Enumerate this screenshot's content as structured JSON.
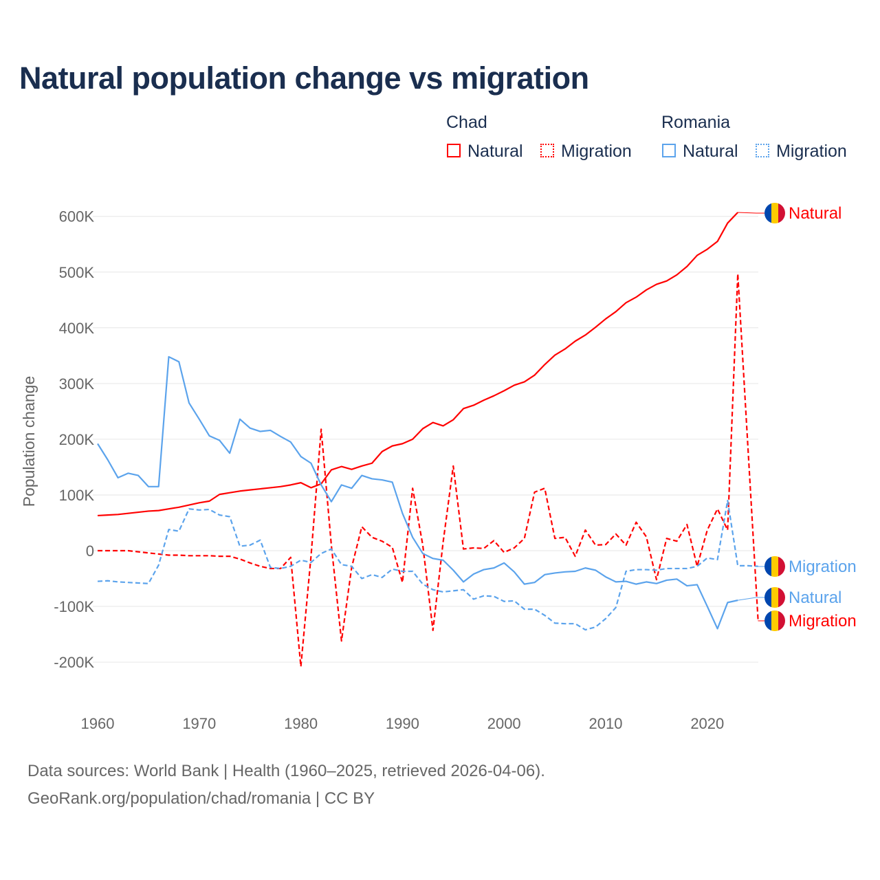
{
  "chart_data": {
    "type": "line",
    "title": "Natural population change vs migration",
    "ylabel": "Population change",
    "xlabel": "",
    "ylim": [
      -200,
      600
    ],
    "xlim": [
      1960,
      2025
    ],
    "grid": true,
    "legend_placement": "top-right",
    "x_ticks": [
      "1960",
      "1970",
      "1980",
      "1990",
      "2000",
      "2010",
      "2020"
    ],
    "y_ticks": [
      {
        "v": 600,
        "t": "600K"
      },
      {
        "v": 500,
        "t": "500K"
      },
      {
        "v": 400,
        "t": "400K"
      },
      {
        "v": 300,
        "t": "300K"
      },
      {
        "v": 200,
        "t": "200K"
      },
      {
        "v": 100,
        "t": "100K"
      },
      {
        "v": 0,
        "t": "0"
      },
      {
        "v": -100,
        "t": "-100K"
      },
      {
        "v": -200,
        "t": "-200K"
      }
    ],
    "units": "thousands",
    "legend_groups": [
      {
        "title": "Chad",
        "items": [
          "Natural",
          "Migration"
        ]
      },
      {
        "title": "Romania",
        "items": [
          "Natural",
          "Migration"
        ]
      }
    ],
    "series": [
      {
        "name": "Chad Natural",
        "label": "Natural",
        "color": "#ff0000",
        "dash": false,
        "start": 1960,
        "values": [
          63,
          64,
          65,
          67,
          69,
          71,
          72,
          75,
          78,
          82,
          86,
          89,
          101,
          104,
          107,
          109,
          111,
          113,
          115,
          118,
          122,
          113,
          120,
          145,
          151,
          146,
          152,
          157,
          178,
          188,
          192,
          200,
          219,
          230,
          224,
          235,
          255,
          261,
          270,
          278,
          287,
          297,
          303,
          315,
          334,
          351,
          362,
          376,
          387,
          401,
          416,
          429,
          445,
          455,
          468,
          478,
          484,
          495,
          510,
          530,
          541,
          555,
          588,
          607
        ]
      },
      {
        "name": "Chad Migration",
        "label": "Migration",
        "color": "#ff0000",
        "dash": true,
        "start": 1960,
        "values": [
          0,
          0,
          0,
          0,
          -2,
          -4,
          -6,
          -8,
          -8,
          -9,
          -9,
          -9,
          -10,
          -10,
          -15,
          -22,
          -28,
          -32,
          -32,
          -12,
          -208,
          -10,
          218,
          10,
          -162,
          -30,
          43,
          24,
          17,
          6,
          -57,
          112,
          10,
          -143,
          15,
          152,
          3,
          5,
          4,
          18,
          -3,
          5,
          22,
          105,
          112,
          22,
          24,
          -10,
          37,
          10,
          11,
          30,
          10,
          51,
          25,
          -52,
          22,
          17,
          47,
          -28,
          37,
          75,
          37,
          497,
          185,
          -126
        ]
      },
      {
        "name": "Romania Natural",
        "label": "Natural",
        "color": "#5ba3ec",
        "dash": false,
        "start": 1960,
        "values": [
          192,
          163,
          131,
          139,
          135,
          115,
          115,
          348,
          339,
          265,
          236,
          206,
          198,
          175,
          236,
          220,
          214,
          216,
          205,
          195,
          169,
          157,
          118,
          88,
          118,
          112,
          135,
          129,
          127,
          123,
          67,
          24,
          -5,
          -14,
          -17,
          -35,
          -56,
          -42,
          -34,
          -31,
          -22,
          -38,
          -60,
          -57,
          -43,
          -40,
          -38,
          -37,
          -31,
          -35,
          -47,
          -56,
          -55,
          -60,
          -56,
          -59,
          -53,
          -51,
          -63,
          -61,
          -100,
          -140,
          -93,
          -89
        ]
      },
      {
        "name": "Romania Migration",
        "label": "Migration",
        "color": "#5ba3ec",
        "dash": true,
        "start": 1960,
        "values": [
          -55,
          -54,
          -56,
          -57,
          -58,
          -59,
          -26,
          38,
          35,
          75,
          73,
          74,
          64,
          61,
          8,
          10,
          19,
          -30,
          -32,
          -28,
          -17,
          -21,
          -5,
          3,
          -25,
          -28,
          -50,
          -43,
          -48,
          -33,
          -37,
          -37,
          -60,
          -70,
          -74,
          -72,
          -70,
          -87,
          -81,
          -82,
          -91,
          -90,
          -105,
          -105,
          -116,
          -130,
          -131,
          -131,
          -142,
          -137,
          -122,
          -102,
          -37,
          -34,
          -34,
          -35,
          -32,
          -32,
          -32,
          -28,
          -13,
          -16,
          90,
          -27,
          -27,
          -28
        ]
      }
    ]
  },
  "footer": {
    "line1": "Data sources: World Bank | Health (1960–2025, retrieved 2026-04-06).",
    "line2": "GeoRank.org/population/chad/romania | CC BY"
  }
}
